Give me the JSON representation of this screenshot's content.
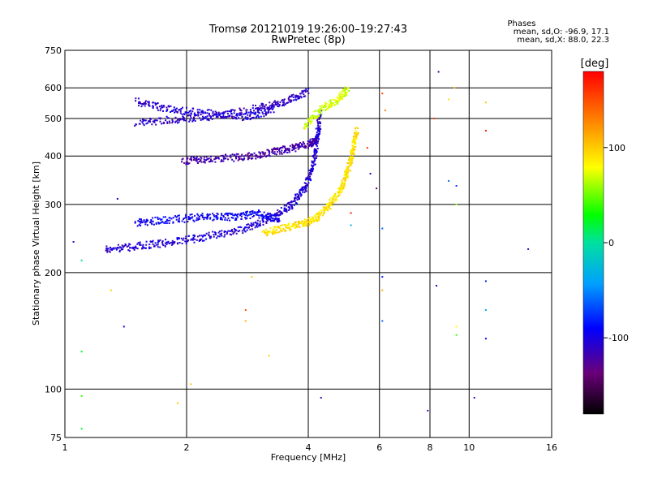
{
  "chart_data": {
    "type": "scatter",
    "title": "Tromsø 20121019 19:26:00–19:27:43",
    "subtitle": "RwPretec (8p)",
    "legend_note": {
      "title": "Phases",
      "line_o": "mean, sd,O: -96.9, 17.1",
      "line_x": "mean, sd,X:  88.0, 22.3"
    },
    "xlabel": "Frequency [MHz]",
    "ylabel": "Stationary phase Virtual Height [km]",
    "x_scale": "log",
    "y_scale": "log",
    "xlim": [
      1,
      16
    ],
    "ylim": [
      75,
      750
    ],
    "x_ticks": [
      1,
      2,
      4,
      6,
      8,
      10,
      16
    ],
    "x_tick_labels": [
      "1",
      "2",
      "4",
      "6",
      "8",
      "10",
      "16"
    ],
    "y_ticks": [
      75,
      100,
      200,
      300,
      400,
      500,
      600,
      750
    ],
    "y_tick_labels": [
      "75",
      "100",
      "200",
      "300",
      "400",
      "500",
      "600",
      "750"
    ],
    "grid": true,
    "colorbar": {
      "label": "[deg]",
      "range": [
        -180,
        180
      ],
      "tick_values": [
        100,
        0,
        -100
      ],
      "tick_labels": [
        "100",
        "0",
        "-100"
      ]
    },
    "traces": [
      {
        "x": [
          1.5,
          1.9,
          2.4,
          3.0,
          3.5,
          4.0
        ],
        "y": [
          490,
          500,
          510,
          535,
          555,
          590
        ],
        "phase": -110
      },
      {
        "x": [
          1.5,
          1.8,
          2.2,
          2.8,
          3.3
        ],
        "y": [
          555,
          530,
          520,
          505,
          530
        ],
        "phase": -105
      },
      {
        "x": [
          1.95,
          2.3,
          2.8,
          3.2,
          3.6,
          4.0,
          4.2
        ],
        "y": [
          390,
          395,
          400,
          410,
          420,
          430,
          450
        ],
        "phase": -120
      },
      {
        "x": [
          1.25,
          1.5,
          1.8,
          2.2,
          2.7,
          3.2,
          3.6,
          3.9,
          4.1,
          4.2,
          4.25
        ],
        "y": [
          230,
          235,
          240,
          248,
          258,
          275,
          300,
          330,
          380,
          450,
          520
        ],
        "phase": -105
      },
      {
        "x": [
          1.5,
          1.8,
          2.2,
          2.6,
          3.0,
          3.4
        ],
        "y": [
          270,
          275,
          280,
          280,
          285,
          275
        ],
        "phase": -95
      },
      {
        "x": [
          3.1,
          3.5,
          3.9,
          4.2,
          4.5,
          4.8,
          5.0,
          5.15,
          5.25
        ],
        "y": [
          255,
          262,
          270,
          280,
          300,
          330,
          370,
          420,
          470
        ],
        "phase": 90
      },
      {
        "x": [
          3.9,
          4.3,
          4.7,
          5.0
        ],
        "y": [
          480,
          530,
          560,
          600
        ],
        "phase": 70
      }
    ],
    "sparse_points": [
      {
        "x": 1.05,
        "y": 240,
        "phase": -110
      },
      {
        "x": 1.1,
        "y": 215,
        "phase": 0
      },
      {
        "x": 1.1,
        "y": 125,
        "phase": 20
      },
      {
        "x": 1.1,
        "y": 96,
        "phase": 40
      },
      {
        "x": 1.1,
        "y": 79,
        "phase": 20
      },
      {
        "x": 1.3,
        "y": 180,
        "phase": 100
      },
      {
        "x": 1.35,
        "y": 310,
        "phase": -110
      },
      {
        "x": 1.4,
        "y": 145,
        "phase": -110
      },
      {
        "x": 2.05,
        "y": 103,
        "phase": 100
      },
      {
        "x": 1.9,
        "y": 92,
        "phase": 100
      },
      {
        "x": 2.8,
        "y": 160,
        "phase": 150
      },
      {
        "x": 2.8,
        "y": 150,
        "phase": 110
      },
      {
        "x": 3.2,
        "y": 122,
        "phase": 100
      },
      {
        "x": 2.9,
        "y": 195,
        "phase": 100
      },
      {
        "x": 4.3,
        "y": 95,
        "phase": -110
      },
      {
        "x": 6.1,
        "y": 580,
        "phase": 150
      },
      {
        "x": 6.2,
        "y": 525,
        "phase": 130
      },
      {
        "x": 6.1,
        "y": 260,
        "phase": -60
      },
      {
        "x": 6.1,
        "y": 195,
        "phase": -80
      },
      {
        "x": 6.1,
        "y": 180,
        "phase": 110
      },
      {
        "x": 6.1,
        "y": 150,
        "phase": -60
      },
      {
        "x": 8.2,
        "y": 500,
        "phase": 160
      },
      {
        "x": 8.4,
        "y": 660,
        "phase": -120
      },
      {
        "x": 8.3,
        "y": 185,
        "phase": -110
      },
      {
        "x": 7.9,
        "y": 88,
        "phase": -120
      },
      {
        "x": 8.9,
        "y": 560,
        "phase": 90
      },
      {
        "x": 8.9,
        "y": 345,
        "phase": -60
      },
      {
        "x": 9.2,
        "y": 600,
        "phase": 110
      },
      {
        "x": 9.3,
        "y": 335,
        "phase": -70
      },
      {
        "x": 9.3,
        "y": 300,
        "phase": 60
      },
      {
        "x": 9.3,
        "y": 145,
        "phase": 80
      },
      {
        "x": 9.3,
        "y": 138,
        "phase": 40
      },
      {
        "x": 10.3,
        "y": 95,
        "phase": -120
      },
      {
        "x": 11.0,
        "y": 550,
        "phase": 100
      },
      {
        "x": 11.0,
        "y": 465,
        "phase": 170
      },
      {
        "x": 11.0,
        "y": 190,
        "phase": -80
      },
      {
        "x": 11.0,
        "y": 160,
        "phase": -40
      },
      {
        "x": 11.0,
        "y": 135,
        "phase": -90
      },
      {
        "x": 14.0,
        "y": 230,
        "phase": -110
      },
      {
        "x": 5.1,
        "y": 285,
        "phase": 170
      },
      {
        "x": 5.1,
        "y": 265,
        "phase": -30
      },
      {
        "x": 5.9,
        "y": 330,
        "phase": -140
      },
      {
        "x": 5.7,
        "y": 360,
        "phase": -110
      },
      {
        "x": 5.6,
        "y": 420,
        "phase": 160
      }
    ]
  }
}
